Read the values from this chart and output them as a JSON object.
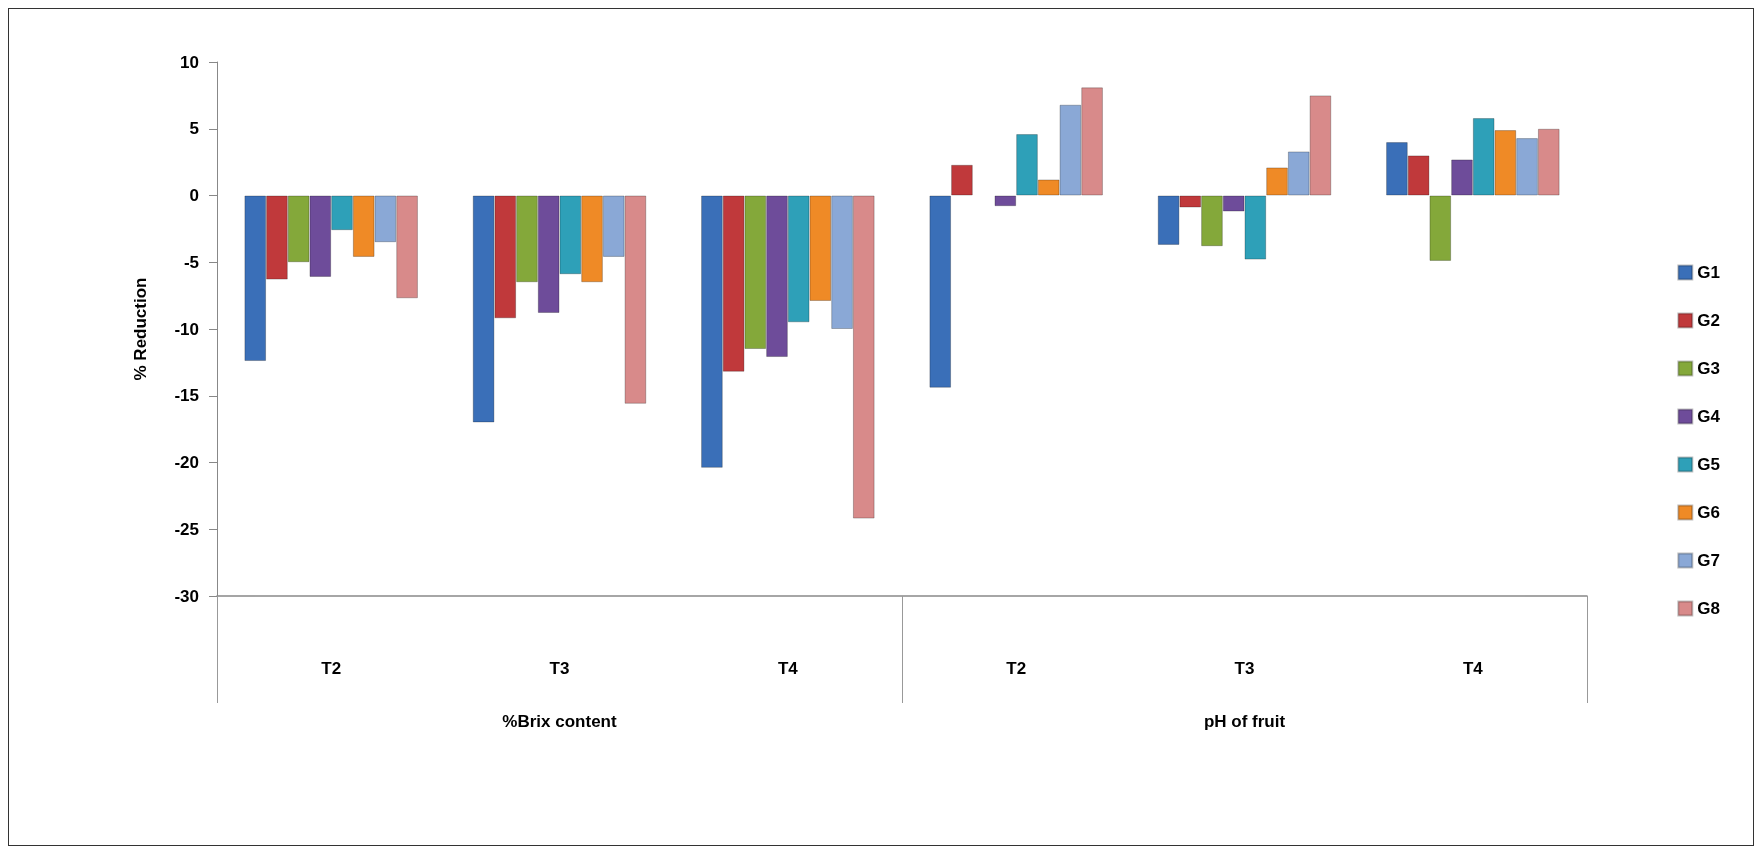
{
  "chart_data": {
    "type": "bar",
    "ylabel": "% Reduction",
    "categories": [
      "T2",
      "T3",
      "T4",
      "T2",
      "T3",
      "T4"
    ],
    "annotations": [
      "%Brix content",
      "pH of fruit"
    ],
    "series": [
      {
        "name": "G1",
        "color": "#3a6fb8",
        "values": [
          -12.4,
          -17.0,
          -20.4,
          -14.4,
          -3.7,
          4.0
        ]
      },
      {
        "name": "G2",
        "color": "#c0393b",
        "values": [
          -6.3,
          -9.2,
          -13.2,
          2.3,
          -0.9,
          3.0
        ]
      },
      {
        "name": "G3",
        "color": "#84a83a",
        "values": [
          -5.0,
          -6.5,
          -11.5,
          null,
          -3.8,
          -4.9
        ]
      },
      {
        "name": "G4",
        "color": "#6e4c9a",
        "values": [
          -6.1,
          -8.8,
          -12.1,
          -0.8,
          -1.2,
          2.7
        ]
      },
      {
        "name": "G5",
        "color": "#2ea0b8",
        "values": [
          -2.6,
          -5.9,
          -9.5,
          4.6,
          -4.8,
          5.8
        ]
      },
      {
        "name": "G6",
        "color": "#ef8a26",
        "values": [
          -4.6,
          -6.5,
          -7.9,
          1.2,
          2.1,
          4.9
        ]
      },
      {
        "name": "G7",
        "color": "#8aa8d6",
        "values": [
          -3.5,
          -4.6,
          -10.0,
          6.8,
          3.3,
          4.3
        ]
      },
      {
        "name": "G8",
        "color": "#d88a8a",
        "values": [
          -7.7,
          -15.6,
          -24.2,
          8.1,
          7.5,
          5.0
        ]
      }
    ],
    "ylim": [
      -30,
      10
    ],
    "yticks": [
      -30,
      -25,
      -20,
      -15,
      -10,
      -5,
      0,
      5,
      10
    ],
    "grid": false,
    "legend": "right"
  }
}
